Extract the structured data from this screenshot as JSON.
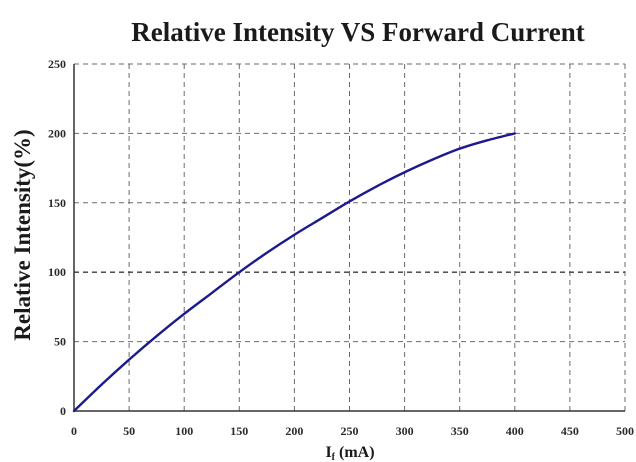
{
  "chart_data": {
    "type": "line",
    "title": "Relative Intensity VS Forward Current",
    "xlabel_main": "I",
    "xlabel_sub": "f",
    "xlabel_unit": " (mA)",
    "ylabel": "Relative Intensity(%)",
    "xlim": [
      0,
      500
    ],
    "ylim": [
      0,
      250
    ],
    "x_ticks": [
      0,
      50,
      100,
      150,
      200,
      250,
      300,
      350,
      400,
      450,
      500
    ],
    "x_tick_labels": [
      "0",
      "50",
      "100",
      "150",
      "200",
      "250",
      "300",
      "350",
      "400",
      "450",
      "500"
    ],
    "y_ticks": [
      0,
      50,
      100,
      150,
      200,
      250
    ],
    "y_tick_labels": [
      "0",
      "50",
      "100",
      "150",
      "200",
      "250"
    ],
    "grid": true,
    "series": [
      {
        "color": "#1c1a8c",
        "x": [
          0,
          25,
          50,
          75,
          100,
          125,
          150,
          175,
          200,
          225,
          250,
          275,
          300,
          325,
          350,
          375,
          400
        ],
        "y": [
          0,
          19,
          37,
          54,
          70,
          85,
          100,
          114,
          127,
          139,
          151,
          162,
          172,
          181,
          189,
          195,
          200
        ]
      }
    ]
  }
}
